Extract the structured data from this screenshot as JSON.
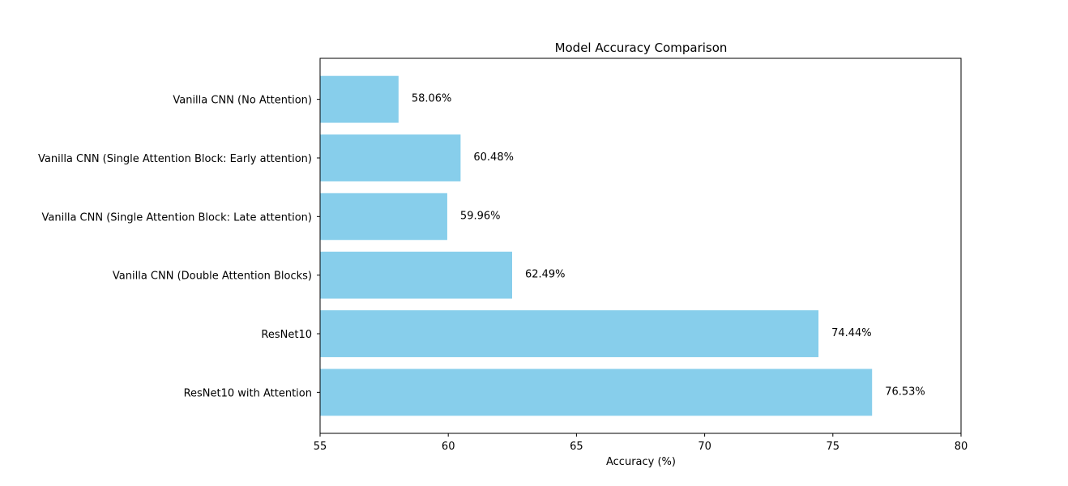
{
  "chart_data": {
    "type": "bar",
    "orientation": "horizontal",
    "title": "Model Accuracy Comparison",
    "xlabel": "Accuracy (%)",
    "ylabel": "",
    "xlim": [
      55,
      80
    ],
    "x_ticks": [
      55,
      60,
      65,
      70,
      75,
      80
    ],
    "categories": [
      "Vanilla CNN (No Attention)",
      "Vanilla CNN (Single Attention Block: Early attention)",
      "Vanilla CNN (Single Attention Block: Late attention)",
      "Vanilla CNN (Double Attention Blocks)",
      "ResNet10",
      "ResNet10 with Attention"
    ],
    "values": [
      58.06,
      60.48,
      59.96,
      62.49,
      74.44,
      76.53
    ],
    "data_labels": [
      "58.06%",
      "60.48%",
      "59.96%",
      "62.49%",
      "74.44%",
      "76.53%"
    ],
    "bar_color": "#87CEEB",
    "grid": false,
    "legend": false
  }
}
